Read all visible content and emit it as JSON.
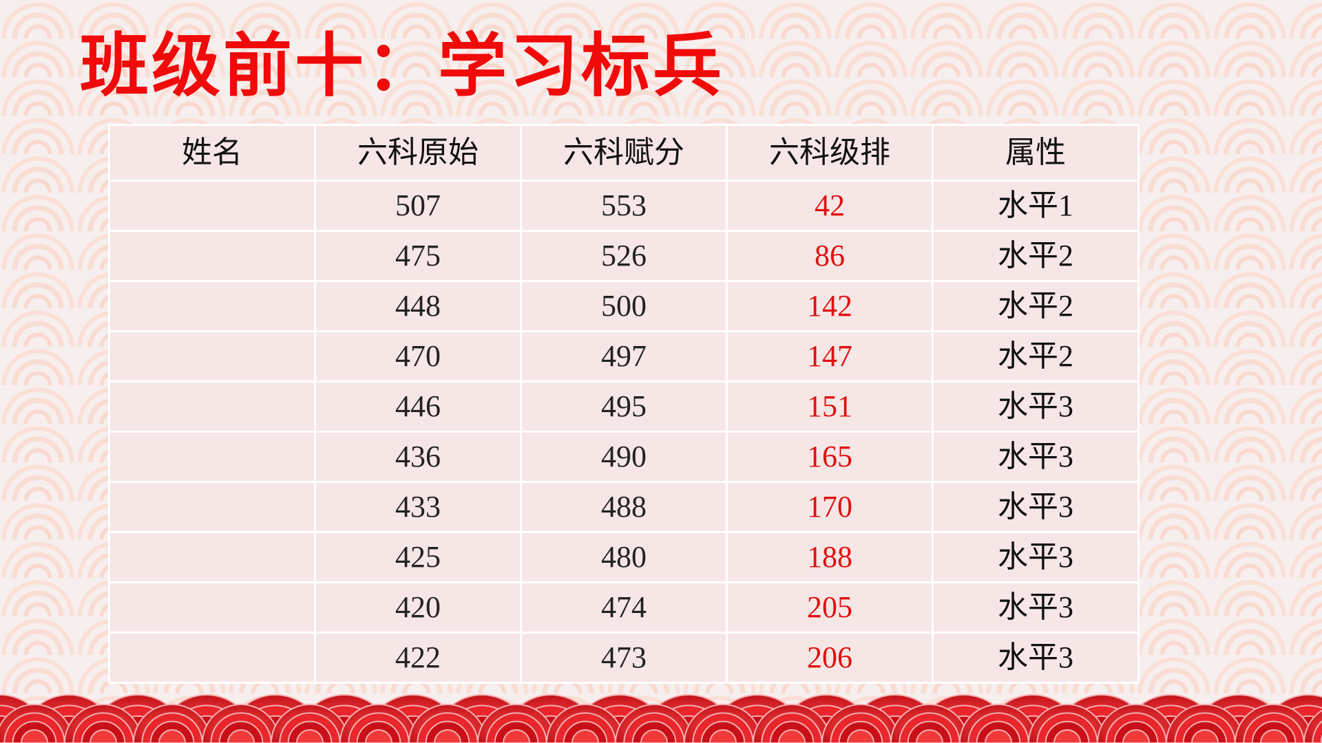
{
  "title": "班级前十：学习标兵",
  "table": {
    "headers": [
      "姓名",
      "六科原始",
      "六科赋分",
      "六科级排",
      "属性"
    ],
    "rows": [
      {
        "name": "",
        "raw": "507",
        "scaled": "553",
        "rank": "42",
        "attr": "水平1"
      },
      {
        "name": "",
        "raw": "475",
        "scaled": "526",
        "rank": "86",
        "attr": "水平2"
      },
      {
        "name": "",
        "raw": "448",
        "scaled": "500",
        "rank": "142",
        "attr": "水平2"
      },
      {
        "name": "",
        "raw": "470",
        "scaled": "497",
        "rank": "147",
        "attr": "水平2"
      },
      {
        "name": "",
        "raw": "446",
        "scaled": "495",
        "rank": "151",
        "attr": "水平3"
      },
      {
        "name": "",
        "raw": "436",
        "scaled": "490",
        "rank": "165",
        "attr": "水平3"
      },
      {
        "name": "",
        "raw": "433",
        "scaled": "488",
        "rank": "170",
        "attr": "水平3"
      },
      {
        "name": "",
        "raw": "425",
        "scaled": "480",
        "rank": "188",
        "attr": "水平3"
      },
      {
        "name": "",
        "raw": "420",
        "scaled": "474",
        "rank": "205",
        "attr": "水平3"
      },
      {
        "name": "",
        "raw": "422",
        "scaled": "473",
        "rank": "206",
        "attr": "水平3"
      }
    ]
  },
  "colors": {
    "title": "#f00a0a",
    "rank": "#e01010",
    "wave": "#d9141e"
  }
}
